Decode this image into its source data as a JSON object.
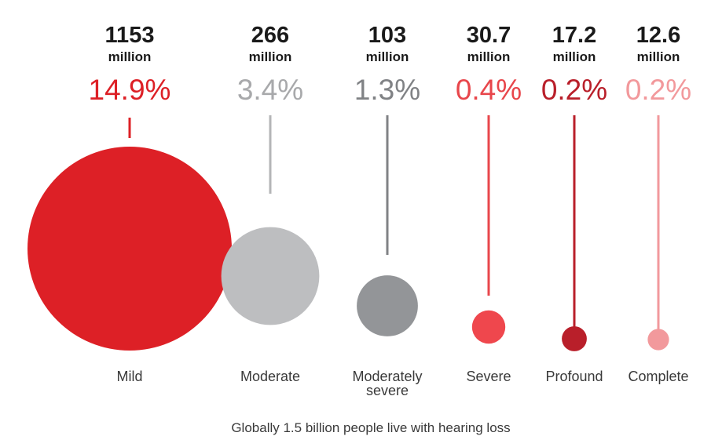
{
  "chart_data": {
    "type": "bubble",
    "caption": "Globally 1.5 billion people live with hearing loss",
    "unit_label": "million",
    "categories": [
      {
        "label": [
          "Mild"
        ],
        "count": "1153",
        "count_value": 1153,
        "percent": "14.9%",
        "percent_value": 14.9,
        "color": "#dd2026",
        "percent_color": "#dd2026",
        "line_color": "#dd2026"
      },
      {
        "label": [
          "Moderate"
        ],
        "count": "266",
        "count_value": 266,
        "percent": "3.4%",
        "percent_value": 3.4,
        "color": "#bdbec0",
        "percent_color": "#a8a9ab",
        "line_color": "#b4b5b7"
      },
      {
        "label": [
          "Moderately",
          "severe"
        ],
        "count": "103",
        "count_value": 103,
        "percent": "1.3%",
        "percent_value": 1.3,
        "color": "#939598",
        "percent_color": "#808285",
        "line_color": "#808285"
      },
      {
        "label": [
          "Severe"
        ],
        "count": "30.7",
        "count_value": 30.7,
        "percent": "0.4%",
        "percent_value": 0.4,
        "color": "#ef474d",
        "percent_color": "#e8464b",
        "line_color": "#e8464b"
      },
      {
        "label": [
          "Profound"
        ],
        "count": "17.2",
        "count_value": 17.2,
        "percent": "0.2%",
        "percent_value": 0.2,
        "color": "#b91f2a",
        "percent_color": "#b91f2a",
        "line_color": "#b91f2a"
      },
      {
        "label": [
          "Complete"
        ],
        "count": "12.6",
        "count_value": 12.6,
        "percent": "0.2%",
        "percent_value": 0.2,
        "color": "#f2999c",
        "percent_color": "#f2999c",
        "line_color": "#f2999c"
      }
    ]
  }
}
